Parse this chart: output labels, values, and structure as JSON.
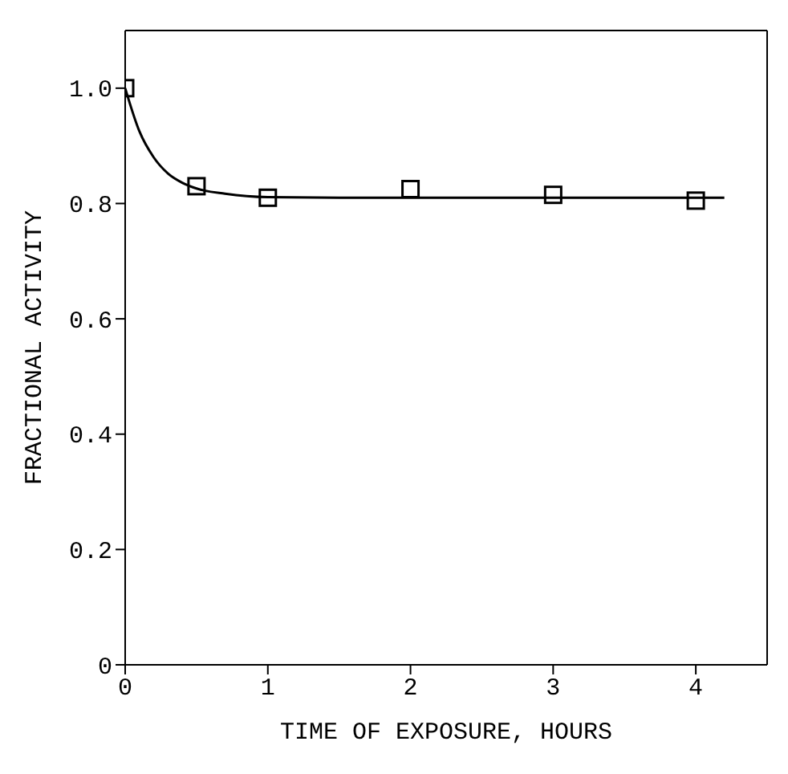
{
  "chart_data": {
    "type": "scatter",
    "xlabel": "TIME OF EXPOSURE, HOURS",
    "ylabel": "FRACTIONAL ACTIVITY",
    "xlim": [
      0,
      4.5
    ],
    "ylim": [
      0,
      1.1
    ],
    "xticks": [
      0,
      1,
      2,
      3,
      4
    ],
    "yticks": [
      0,
      0.2,
      0.4,
      0.6,
      0.8,
      {
        "value": 1.0,
        "label": "1.0"
      }
    ],
    "grid": false,
    "legend": false,
    "marker": "square",
    "series": [
      {
        "color": "#000000",
        "x": [
          0,
          0.5,
          1,
          2,
          3,
          4
        ],
        "values": [
          1.0,
          0.83,
          0.81,
          0.825,
          0.815,
          0.805
        ]
      },
      {
        "type": "line",
        "color": "#000000",
        "marker": "none",
        "line_style": "solid",
        "x": [
          0,
          0.1,
          0.2,
          0.3,
          0.4,
          0.5,
          0.7,
          1.0,
          1.5,
          2,
          3,
          4.2
        ],
        "values": [
          1.0,
          0.925,
          0.88,
          0.852,
          0.836,
          0.826,
          0.817,
          0.811,
          0.81,
          0.81,
          0.81,
          0.81
        ]
      }
    ]
  }
}
